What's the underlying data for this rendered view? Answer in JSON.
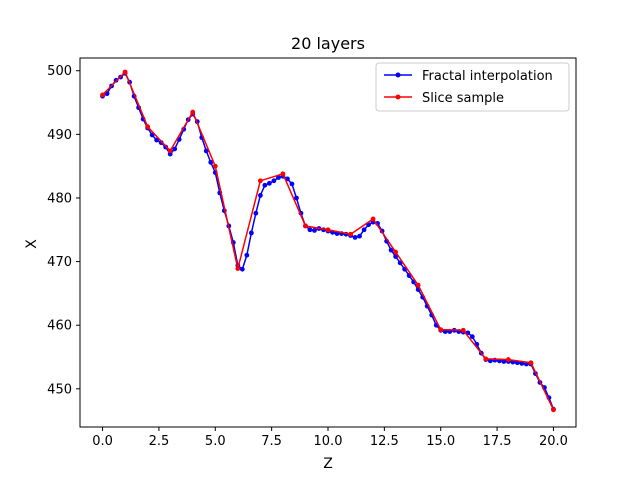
{
  "chart_data": {
    "type": "line",
    "title": "20 layers",
    "xlabel": "Z",
    "ylabel": "X",
    "xlim": [
      -1.0,
      21.0
    ],
    "ylim": [
      444.0,
      502.0
    ],
    "xticks": [
      0.0,
      2.5,
      5.0,
      7.5,
      10.0,
      12.5,
      15.0,
      17.5,
      20.0
    ],
    "xtick_labels": [
      "0.0",
      "2.5",
      "5.0",
      "7.5",
      "10.0",
      "12.5",
      "15.0",
      "17.5",
      "20.0"
    ],
    "yticks": [
      450,
      460,
      470,
      480,
      490,
      500
    ],
    "ytick_labels": [
      "450",
      "460",
      "470",
      "480",
      "490",
      "500"
    ],
    "grid": false,
    "legend_position": "top-right",
    "series": [
      {
        "name": "Fractal interpolation",
        "color": "#0000ff",
        "marker": "dot",
        "x": [
          0.0,
          0.2,
          0.4,
          0.6,
          0.8,
          1.0,
          1.2,
          1.4,
          1.6,
          1.8,
          2.0,
          2.2,
          2.4,
          2.6,
          2.8,
          3.0,
          3.2,
          3.4,
          3.6,
          3.8,
          4.0,
          4.2,
          4.4,
          4.6,
          4.8,
          5.0,
          5.2,
          5.4,
          5.6,
          5.8,
          6.0,
          6.2,
          6.4,
          6.6,
          6.8,
          7.0,
          7.2,
          7.4,
          7.6,
          7.8,
          8.0,
          8.2,
          8.4,
          8.6,
          8.8,
          9.0,
          9.2,
          9.4,
          9.6,
          9.8,
          10.0,
          10.2,
          10.4,
          10.6,
          10.8,
          11.0,
          11.2,
          11.4,
          11.6,
          11.8,
          12.0,
          12.2,
          12.4,
          12.6,
          12.8,
          13.0,
          13.2,
          13.4,
          13.6,
          13.8,
          14.0,
          14.2,
          14.4,
          14.6,
          14.8,
          15.0,
          15.2,
          15.4,
          15.6,
          15.8,
          16.0,
          16.2,
          16.4,
          16.6,
          16.8,
          17.0,
          17.2,
          17.4,
          17.6,
          17.8,
          18.0,
          18.2,
          18.4,
          18.6,
          18.8,
          19.0,
          19.2,
          19.4,
          19.6,
          19.8,
          20.0
        ],
        "y": [
          496.0,
          496.4,
          497.6,
          498.5,
          499.0,
          499.6,
          498.2,
          496.0,
          494.2,
          492.4,
          491.0,
          489.9,
          489.1,
          488.7,
          488.0,
          486.9,
          487.7,
          489.2,
          490.8,
          492.3,
          493.2,
          492.0,
          489.5,
          487.4,
          485.6,
          484.0,
          480.8,
          478.0,
          475.6,
          473.0,
          469.4,
          468.8,
          471.0,
          474.5,
          477.6,
          480.4,
          482.0,
          482.3,
          482.7,
          483.2,
          483.4,
          483.0,
          482.2,
          480.0,
          477.6,
          475.6,
          475.0,
          474.9,
          475.2,
          475.0,
          474.8,
          474.6,
          474.4,
          474.4,
          474.3,
          474.1,
          473.8,
          474.0,
          475.0,
          475.8,
          476.2,
          476.0,
          474.8,
          473.2,
          471.8,
          470.8,
          469.8,
          468.8,
          467.8,
          466.8,
          465.6,
          464.4,
          463.0,
          461.6,
          460.0,
          459.2,
          459.0,
          459.0,
          459.2,
          459.0,
          458.9,
          458.8,
          458.2,
          457.0,
          455.6,
          454.6,
          454.4,
          454.5,
          454.4,
          454.3,
          454.3,
          454.2,
          454.1,
          454.0,
          453.9,
          453.9,
          452.4,
          451.0,
          450.2,
          448.6,
          446.8
        ]
      },
      {
        "name": "Slice sample",
        "color": "#ff0000",
        "marker": "dot",
        "x": [
          0,
          1,
          2,
          3,
          4,
          5,
          6,
          7,
          8,
          9,
          10,
          11,
          12,
          13,
          14,
          15,
          16,
          17,
          18,
          19,
          20
        ],
        "y": [
          496.2,
          499.8,
          491.2,
          487.4,
          493.5,
          485.0,
          468.9,
          482.7,
          483.8,
          475.6,
          475.0,
          474.3,
          476.7,
          471.5,
          466.3,
          459.3,
          459.2,
          454.7,
          454.6,
          454.1,
          446.7
        ]
      }
    ]
  }
}
